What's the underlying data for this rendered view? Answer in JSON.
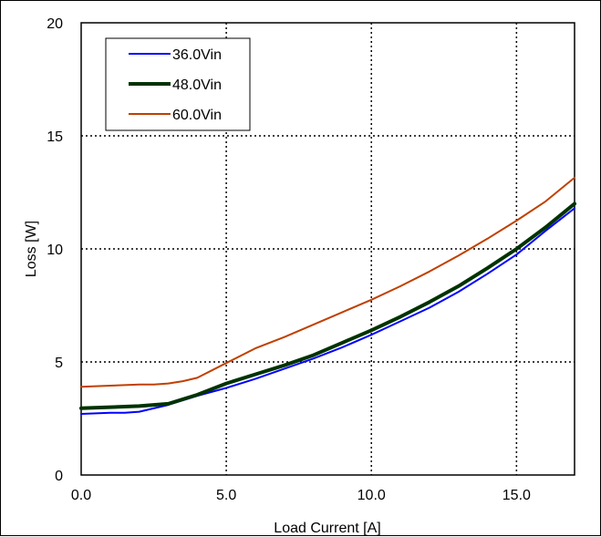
{
  "chart_data": {
    "type": "line",
    "title": "",
    "xlabel": "Load Current [A]",
    "ylabel": "Loss [W]",
    "xlim": [
      0,
      17
    ],
    "ylim": [
      0,
      20
    ],
    "xticks": [
      0,
      5,
      10,
      15
    ],
    "xtick_labels": [
      "0.0",
      "5.0",
      "10.0",
      "15.0"
    ],
    "yticks": [
      0,
      5,
      10,
      15,
      20
    ],
    "ytick_labels": [
      "0",
      "5",
      "10",
      "15",
      "20"
    ],
    "grid": true,
    "legend_position": "top-left",
    "series": [
      {
        "name": "36.0Vin",
        "color": "#0000ff",
        "x": [
          0,
          1,
          1.5,
          2,
          3,
          4,
          5,
          6,
          7,
          8,
          9,
          10,
          11,
          12,
          13,
          14,
          15,
          16,
          17
        ],
        "y": [
          2.7,
          2.75,
          2.75,
          2.8,
          3.1,
          3.5,
          3.85,
          4.25,
          4.7,
          5.15,
          5.65,
          6.2,
          6.8,
          7.4,
          8.1,
          8.9,
          9.75,
          10.8,
          11.8
        ]
      },
      {
        "name": "48.0Vin",
        "color": "#003300",
        "x": [
          0,
          1,
          2,
          3,
          4,
          5,
          6,
          7,
          8,
          9,
          10,
          11,
          12,
          13,
          14,
          15,
          16,
          17
        ],
        "y": [
          2.95,
          3.0,
          3.05,
          3.15,
          3.55,
          4.05,
          4.45,
          4.85,
          5.3,
          5.85,
          6.4,
          7.0,
          7.65,
          8.35,
          9.15,
          10.0,
          10.95,
          12.0
        ]
      },
      {
        "name": "60.0Vin",
        "color": "#c04000",
        "x": [
          0,
          1,
          2,
          2.5,
          3,
          3.5,
          4,
          5,
          6,
          7,
          8,
          9,
          10,
          11,
          12,
          13,
          14,
          15,
          16,
          17
        ],
        "y": [
          3.9,
          3.95,
          4.0,
          4.0,
          4.05,
          4.15,
          4.3,
          4.95,
          5.6,
          6.1,
          6.65,
          7.2,
          7.75,
          8.35,
          9.0,
          9.7,
          10.45,
          11.25,
          12.1,
          13.15
        ]
      }
    ]
  }
}
